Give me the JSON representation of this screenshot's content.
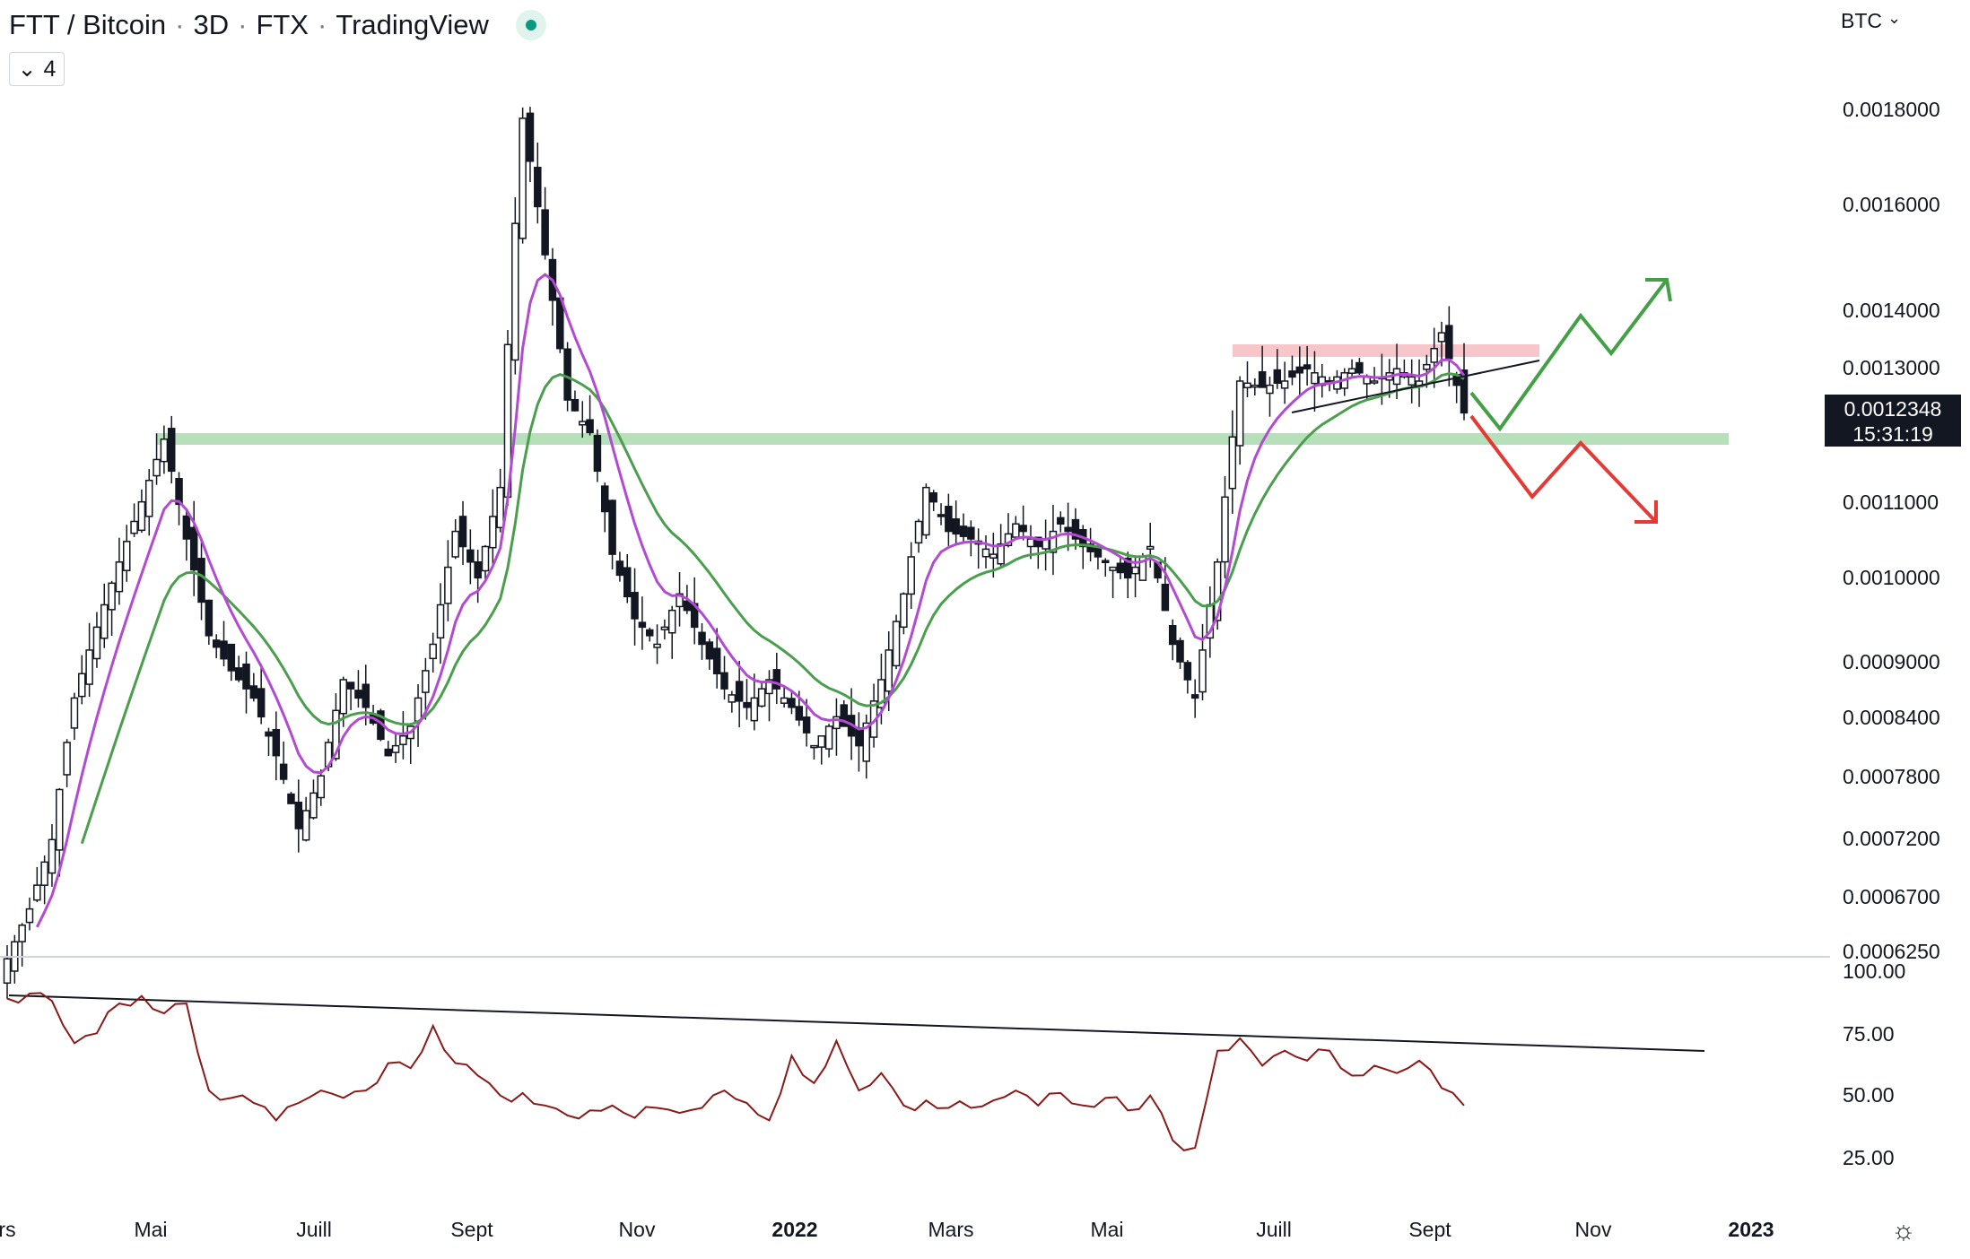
{
  "header": {
    "pair": "FTT / Bitcoin",
    "interval": "3D",
    "exchange": "FTX",
    "source": "TradingView",
    "indicator_count": "4",
    "currency": "BTC"
  },
  "price_axis": {
    "labels": [
      "0.0018000",
      "0.0016000",
      "0.0014000",
      "0.0013000",
      "0.0011000",
      "0.0010000",
      "0.0009000",
      "0.0008400",
      "0.0007800",
      "0.0007200",
      "0.0006700",
      "0.0006250"
    ],
    "last_price": "0.0012348",
    "countdown": "15:31:19"
  },
  "rsi_axis": {
    "labels": [
      "100.00",
      "75.00",
      "50.00",
      "25.00"
    ]
  },
  "time_axis": {
    "labels": [
      {
        "text": "rs",
        "bold": false
      },
      {
        "text": "Mai",
        "bold": false
      },
      {
        "text": "Juill",
        "bold": false
      },
      {
        "text": "Sept",
        "bold": false
      },
      {
        "text": "Nov",
        "bold": false
      },
      {
        "text": "2022",
        "bold": true
      },
      {
        "text": "Mars",
        "bold": false
      },
      {
        "text": "Mai",
        "bold": false
      },
      {
        "text": "Juill",
        "bold": false
      },
      {
        "text": "Sept",
        "bold": false
      },
      {
        "text": "Nov",
        "bold": false
      },
      {
        "text": "2023",
        "bold": true
      }
    ]
  },
  "colors": {
    "candle": "#131722",
    "ema_fast": "#b24bd1",
    "ema_slow": "#4a9e4e",
    "support_zone": "#b6e0b9",
    "resistance_zone": "#f6c6cb",
    "rsi_line": "#8a1a1a",
    "bull_arrow": "#43a047",
    "bear_arrow": "#e53935"
  },
  "chart_data": {
    "type": "candlestick",
    "series": [
      {
        "name": "price_path",
        "y": [
          0.00062,
          0.00066,
          0.00072,
          0.00086,
          0.00094,
          0.00102,
          0.0011,
          0.00119,
          0.00105,
          0.00093,
          0.00089,
          0.00086,
          0.0008,
          0.00073,
          0.00078,
          0.00088,
          0.00085,
          0.0008,
          0.00083,
          0.00092,
          0.00106,
          0.001,
          0.00112,
          0.00178,
          0.0015,
          0.00125,
          0.0012,
          0.00103,
          0.00095,
          0.00092,
          0.00098,
          0.00092,
          0.00087,
          0.00085,
          0.00088,
          0.00085,
          0.00081,
          0.00084,
          0.00081,
          0.00088,
          0.00098,
          0.00112,
          0.00106,
          0.00105,
          0.00103,
          0.00107,
          0.00104,
          0.00107,
          0.00104,
          0.00102,
          0.001,
          0.00104,
          0.00092,
          0.00086,
          0.00102,
          0.00128,
          0.00127,
          0.00128,
          0.0013,
          0.00128,
          0.0013,
          0.00128,
          0.0013,
          0.00128,
          0.00136,
          0.00123
        ]
      },
      {
        "name": "rsi",
        "y": [
          89,
          91,
          88,
          71,
          75,
          87,
          90,
          83,
          87,
          52,
          49,
          47,
          40,
          47,
          52,
          49,
          52,
          63,
          61,
          78,
          63,
          58,
          50,
          51,
          46,
          42,
          44,
          46,
          41,
          45,
          43,
          45,
          52,
          47,
          40,
          66,
          55,
          72,
          52,
          59,
          46,
          48,
          45,
          45,
          48,
          52,
          46,
          51,
          46,
          49,
          44,
          50,
          32,
          29,
          68,
          73,
          62,
          68,
          64,
          68,
          58,
          62,
          59,
          64,
          53,
          46
        ]
      }
    ],
    "price_levels": {
      "support": 0.0012,
      "resistance": 0.00133
    }
  }
}
